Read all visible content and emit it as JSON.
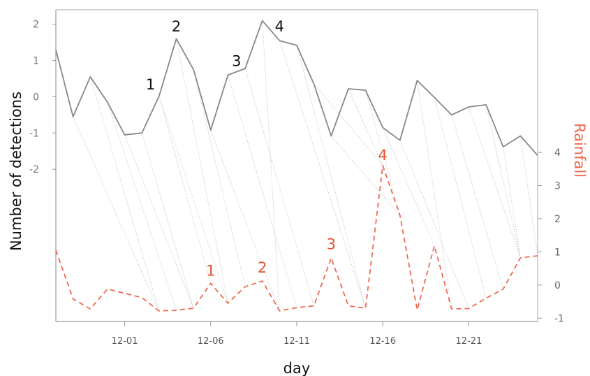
{
  "chart_data": {
    "type": "line",
    "xlabel": "day",
    "ylabel_left": "Number of detections",
    "ylabel_right": "Rainfall",
    "x_tick_labels": [
      "12-01",
      "12-06",
      "12-11",
      "12-16",
      "12-21"
    ],
    "x_tick_days": [
      4,
      9,
      14,
      19,
      24
    ],
    "x_range": [
      0,
      28
    ],
    "left_ticks": [
      "2",
      "1",
      "0",
      "-1",
      "-2"
    ],
    "left_tick_values": [
      2,
      1,
      0,
      -1,
      -2
    ],
    "left_range": [
      -6.2,
      2.4
    ],
    "right_ticks": [
      "4",
      "3",
      "2",
      "1",
      "0",
      "-1"
    ],
    "right_tick_values": [
      4,
      3,
      2,
      1,
      0,
      -1
    ],
    "right_range": [
      -1.1,
      8.3
    ],
    "colors": {
      "detections": "#888888",
      "rainfall": "#f0694f",
      "connectors": "#c8c8c8",
      "annotation_detections": "#111111",
      "annotation_rainfall": "#e5512f",
      "axes": "#999999"
    },
    "grid": false,
    "series": [
      {
        "style": "solid",
        "axis": "left",
        "x": [
          0,
          1,
          2,
          3,
          4,
          5,
          6,
          7,
          8,
          9,
          10,
          11,
          12,
          13,
          14,
          15,
          16,
          17,
          18,
          19,
          20,
          21,
          22,
          23,
          24,
          25,
          26,
          27,
          28
        ],
        "values": [
          1.3,
          -0.55,
          0.55,
          -0.15,
          -1.05,
          -1.0,
          0.02,
          1.6,
          0.75,
          -0.92,
          0.6,
          0.78,
          2.1,
          1.55,
          1.42,
          0.35,
          -1.08,
          0.22,
          0.18,
          -0.85,
          -1.2,
          0.45,
          -0.02,
          -0.5,
          -0.28,
          -0.22,
          -1.38,
          -1.08,
          -1.62
        ]
      },
      {
        "style": "dashed",
        "axis": "right",
        "x": [
          0,
          1,
          2,
          3,
          4,
          5,
          6,
          7,
          8,
          9,
          10,
          11,
          12,
          13,
          14,
          15,
          16,
          17,
          18,
          19,
          20,
          21,
          22,
          23,
          24,
          25,
          26,
          27,
          28
        ],
        "values": [
          1.05,
          -0.42,
          -0.72,
          -0.12,
          -0.25,
          -0.38,
          -0.78,
          -0.76,
          -0.7,
          0.05,
          -0.55,
          -0.05,
          0.12,
          -0.78,
          -0.68,
          -0.63,
          0.82,
          -0.63,
          -0.7,
          3.6,
          2.1,
          -0.75,
          1.18,
          -0.72,
          -0.71,
          -0.4,
          -0.12,
          0.82,
          0.88
        ]
      }
    ],
    "connectors": [
      [
        1,
        6
      ],
      [
        2,
        6
      ],
      [
        3,
        7
      ],
      [
        4,
        8
      ],
      [
        5,
        8
      ],
      [
        6,
        9
      ],
      [
        6,
        10
      ],
      [
        7,
        10
      ],
      [
        8,
        11
      ],
      [
        9,
        13
      ],
      [
        10,
        14
      ],
      [
        11,
        15
      ],
      [
        12,
        13
      ],
      [
        13,
        18
      ],
      [
        14,
        18
      ],
      [
        15,
        19
      ],
      [
        16,
        20
      ],
      [
        17,
        19
      ],
      [
        18,
        20
      ],
      [
        19,
        22
      ],
      [
        20,
        24
      ],
      [
        21,
        23
      ],
      [
        22,
        25
      ],
      [
        23,
        26
      ],
      [
        24,
        27
      ],
      [
        25,
        27
      ],
      [
        26,
        27
      ],
      [
        27,
        28
      ]
    ],
    "annotations_detections": [
      {
        "label": "1",
        "x": 5.5,
        "y": 0.2
      },
      {
        "label": "2",
        "x": 7.0,
        "y": 1.8
      },
      {
        "label": "3",
        "x": 10.5,
        "y": 0.85
      },
      {
        "label": "4",
        "x": 13.0,
        "y": 1.8
      }
    ],
    "annotations_rainfall": [
      {
        "label": "1",
        "x": 9.0,
        "y": 0.28
      },
      {
        "label": "2",
        "x": 12.0,
        "y": 0.38
      },
      {
        "label": "3",
        "x": 16.0,
        "y": 1.08
      },
      {
        "label": "4",
        "x": 19.0,
        "y": 3.77
      }
    ]
  }
}
